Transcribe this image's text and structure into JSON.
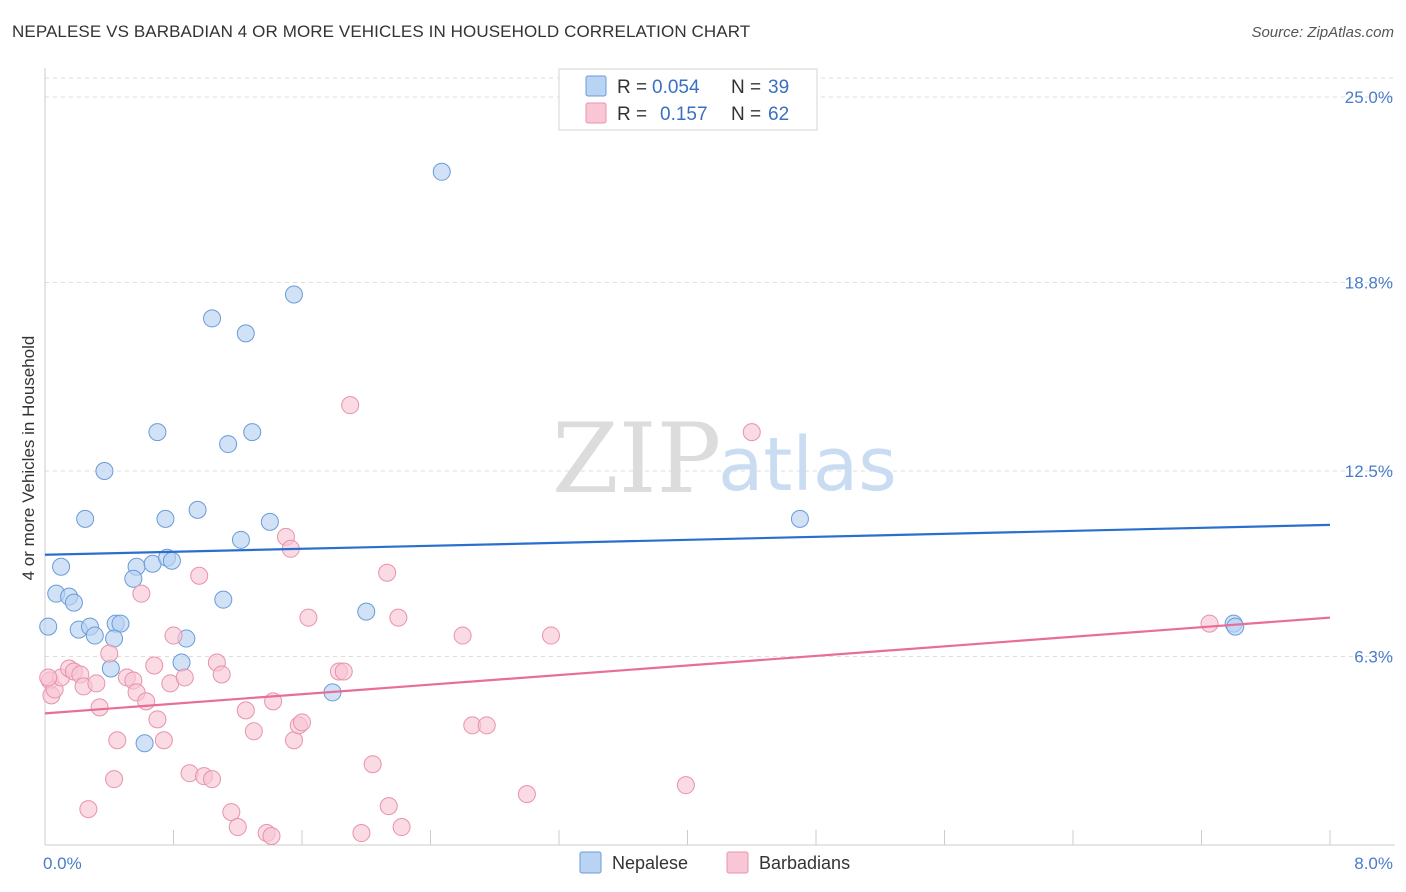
{
  "header": {
    "title": "NEPALESE VS BARBADIAN 4 OR MORE VEHICLES IN HOUSEHOLD CORRELATION CHART",
    "source": "Source: ZipAtlas.com"
  },
  "watermark": {
    "zip": "ZIP",
    "atlas": "atlas"
  },
  "legend": {
    "rows": [
      {
        "r_label": "R =",
        "r_value": "0.054",
        "n_label": "N =",
        "n_value": "39"
      },
      {
        "r_label": "R =",
        "r_value": "0.157",
        "n_label": "N =",
        "n_value": "62"
      }
    ]
  },
  "colors": {
    "blue_fill": "#b9d3f3",
    "blue_stroke": "#6a9bd8",
    "blue_line": "#2b6fce",
    "pink_fill": "#f8c6d4",
    "pink_stroke": "#e892ad",
    "pink_line": "#e86e96",
    "grid": "#dddddd",
    "axis_text": "#4a7cc9"
  },
  "chart_data": {
    "type": "scatter",
    "title": "NEPALESE VS BARBADIAN 4 OR MORE VEHICLES IN HOUSEHOLD CORRELATION CHART",
    "xlabel": "",
    "ylabel": "4 or more Vehicles in Household",
    "xlim": [
      0,
      8
    ],
    "ylim": [
      0,
      25
    ],
    "x_tick_labels": [
      {
        "value": 0,
        "label": "0.0%"
      },
      {
        "value": 8,
        "label": "8.0%"
      }
    ],
    "y_ticks": [
      {
        "value": 25.0,
        "label": "25.0%"
      },
      {
        "value": 18.8,
        "label": "18.8%"
      },
      {
        "value": 12.5,
        "label": "12.5%"
      },
      {
        "value": 6.3,
        "label": "6.3%"
      }
    ],
    "x_minor_ticks": [
      0.8,
      1.6,
      2.4,
      3.2,
      4.0,
      4.8,
      5.6,
      6.4,
      7.2,
      8.0
    ],
    "series": [
      {
        "name": "Nepalese",
        "color": "blue",
        "R": 0.054,
        "N": 39,
        "trend": [
          [
            0,
            9.7
          ],
          [
            8,
            10.7
          ]
        ],
        "points": [
          [
            2.47,
            22.5
          ],
          [
            1.55,
            18.4
          ],
          [
            1.04,
            17.6
          ],
          [
            1.25,
            17.1
          ],
          [
            0.7,
            13.8
          ],
          [
            1.14,
            13.4
          ],
          [
            1.29,
            13.8
          ],
          [
            0.37,
            12.5
          ],
          [
            0.25,
            10.9
          ],
          [
            0.95,
            11.2
          ],
          [
            0.75,
            10.9
          ],
          [
            1.4,
            10.8
          ],
          [
            1.22,
            10.2
          ],
          [
            0.1,
            9.3
          ],
          [
            0.57,
            9.3
          ],
          [
            0.67,
            9.4
          ],
          [
            0.76,
            9.6
          ],
          [
            0.79,
            9.5
          ],
          [
            0.55,
            8.9
          ],
          [
            0.07,
            8.4
          ],
          [
            0.15,
            8.3
          ],
          [
            0.18,
            8.1
          ],
          [
            1.11,
            8.2
          ],
          [
            0.02,
            7.3
          ],
          [
            0.21,
            7.2
          ],
          [
            0.28,
            7.3
          ],
          [
            0.31,
            7.0
          ],
          [
            0.44,
            7.4
          ],
          [
            0.47,
            7.4
          ],
          [
            2.0,
            7.8
          ],
          [
            0.43,
            6.9
          ],
          [
            0.88,
            6.9
          ],
          [
            0.85,
            6.1
          ],
          [
            0.41,
            5.9
          ],
          [
            1.79,
            5.1
          ],
          [
            0.62,
            3.4
          ],
          [
            4.7,
            10.9
          ],
          [
            7.4,
            7.4
          ],
          [
            7.41,
            7.3
          ]
        ]
      },
      {
        "name": "Barbadians",
        "color": "pink",
        "R": 0.157,
        "N": 62,
        "trend": [
          [
            0,
            4.4
          ],
          [
            8,
            7.6
          ]
        ],
        "points": [
          [
            0.03,
            5.5
          ],
          [
            0.04,
            5.0
          ],
          [
            0.06,
            5.2
          ],
          [
            0.1,
            5.6
          ],
          [
            0.15,
            5.9
          ],
          [
            0.18,
            5.8
          ],
          [
            0.22,
            5.7
          ],
          [
            0.24,
            5.3
          ],
          [
            0.32,
            5.4
          ],
          [
            0.34,
            4.6
          ],
          [
            0.4,
            6.4
          ],
          [
            0.45,
            3.5
          ],
          [
            0.43,
            2.2
          ],
          [
            0.27,
            1.2
          ],
          [
            0.51,
            5.6
          ],
          [
            0.55,
            5.5
          ],
          [
            0.57,
            5.1
          ],
          [
            0.6,
            8.4
          ],
          [
            0.63,
            4.8
          ],
          [
            0.68,
            6.0
          ],
          [
            0.7,
            4.2
          ],
          [
            0.74,
            3.5
          ],
          [
            0.78,
            5.4
          ],
          [
            0.8,
            7.0
          ],
          [
            0.87,
            5.6
          ],
          [
            0.9,
            2.4
          ],
          [
            0.96,
            9.0
          ],
          [
            0.99,
            2.3
          ],
          [
            1.04,
            2.2
          ],
          [
            1.07,
            6.1
          ],
          [
            1.1,
            5.7
          ],
          [
            1.16,
            1.1
          ],
          [
            1.2,
            0.6
          ],
          [
            1.25,
            4.5
          ],
          [
            1.3,
            3.8
          ],
          [
            1.38,
            0.4
          ],
          [
            1.41,
            0.3
          ],
          [
            1.42,
            4.8
          ],
          [
            1.5,
            10.3
          ],
          [
            1.53,
            9.9
          ],
          [
            1.55,
            3.5
          ],
          [
            1.58,
            4.0
          ],
          [
            1.6,
            4.1
          ],
          [
            1.64,
            7.6
          ],
          [
            1.83,
            5.8
          ],
          [
            1.86,
            5.8
          ],
          [
            1.9,
            14.7
          ],
          [
            1.97,
            0.4
          ],
          [
            2.04,
            2.7
          ],
          [
            2.13,
            9.1
          ],
          [
            2.2,
            7.6
          ],
          [
            2.14,
            1.3
          ],
          [
            2.22,
            0.6
          ],
          [
            2.6,
            7.0
          ],
          [
            2.66,
            4.0
          ],
          [
            2.75,
            4.0
          ],
          [
            3.0,
            1.7
          ],
          [
            3.15,
            7.0
          ],
          [
            3.99,
            2.0
          ],
          [
            4.4,
            13.8
          ],
          [
            7.25,
            7.4
          ],
          [
            0.02,
            5.6
          ]
        ]
      }
    ]
  }
}
